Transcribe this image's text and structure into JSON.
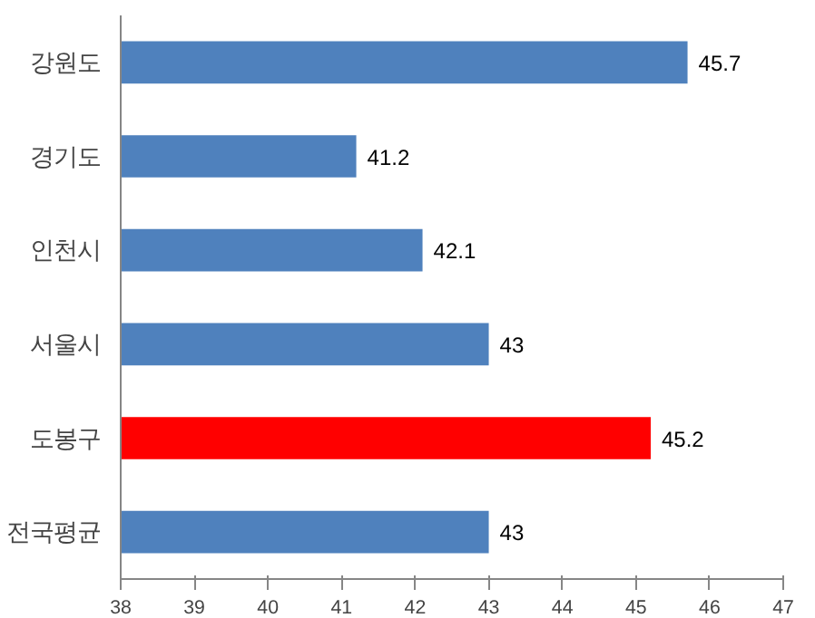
{
  "chart_data": {
    "type": "bar",
    "orientation": "horizontal",
    "categories": [
      "강원도",
      "경기도",
      "인천시",
      "서울시",
      "도봉구",
      "전국평균"
    ],
    "values": [
      45.7,
      41.2,
      42.1,
      43,
      45.2,
      43
    ],
    "colors": [
      "#4f81bd",
      "#4f81bd",
      "#4f81bd",
      "#4f81bd",
      "#ff0000",
      "#4f81bd"
    ],
    "xlim": [
      38,
      47
    ],
    "xticks": [
      38,
      39,
      40,
      41,
      42,
      43,
      44,
      45,
      46,
      47
    ],
    "data_labels": true,
    "grid": false
  }
}
